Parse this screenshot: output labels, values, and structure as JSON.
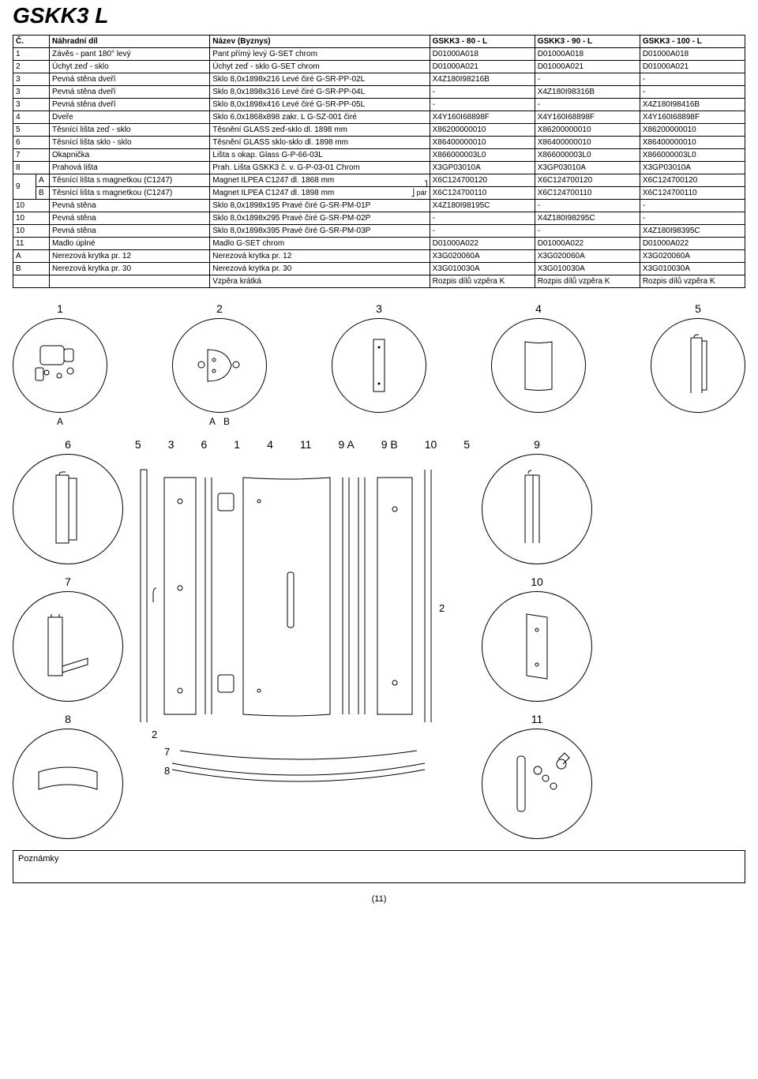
{
  "title": "GSKK3 L",
  "table": {
    "headers": [
      "Č.",
      "Náhradní díl",
      "Název (Byznys)",
      "GSKK3 - 80 - L",
      "GSKK3 - 90 - L",
      "GSKK3 - 100 - L"
    ],
    "rows": [
      {
        "n": "1",
        "sub": "",
        "name": "Závěs - pant 180° levý",
        "biz": "Pant přímý levý G-SET chrom",
        "c1": "D01000A018",
        "c2": "D01000A018",
        "c3": "D01000A018"
      },
      {
        "n": "2",
        "sub": "",
        "name": "Úchyt zeď - sklo",
        "biz": "Úchyt zeď - sklo G-SET chrom",
        "c1": "D01000A021",
        "c2": "D01000A021",
        "c3": "D01000A021"
      },
      {
        "n": "3",
        "sub": "",
        "name": "Pevná stěna dveří",
        "biz": "Sklo 8,0x1898x216 Levé čiré G-SR-PP-02L",
        "c1": "X4Z180I98216B",
        "c2": "-",
        "c3": "-"
      },
      {
        "n": "3",
        "sub": "",
        "name": "Pevná stěna dveří",
        "biz": "Sklo 8,0x1898x316 Levé čiré G-SR-PP-04L",
        "c1": "-",
        "c2": "X4Z180I98316B",
        "c3": "-"
      },
      {
        "n": "3",
        "sub": "",
        "name": "Pevná stěna dveří",
        "biz": "Sklo 8,0x1898x416 Levé čiré G-SR-PP-05L",
        "c1": "-",
        "c2": "-",
        "c3": "X4Z180I98416B"
      },
      {
        "n": "4",
        "sub": "",
        "name": "Dveře",
        "biz": "Sklo 6,0x1868x898 zakr. L G-SZ-001 čiré",
        "c1": "X4Y160I68898F",
        "c2": "X4Y160I68898F",
        "c3": "X4Y160I68898F"
      },
      {
        "n": "5",
        "sub": "",
        "name": "Těsnící lišta zeď - sklo",
        "biz": "Těsnění GLASS zeď-sklo dl. 1898 mm",
        "c1": "X86200000010",
        "c2": "X86200000010",
        "c3": "X86200000010"
      },
      {
        "n": "6",
        "sub": "",
        "name": "Těsnící lišta sklo - sklo",
        "biz": "Těsnění GLASS sklo-sklo dl. 1898 mm",
        "c1": "X86400000010",
        "c2": "X86400000010",
        "c3": "X86400000010"
      },
      {
        "n": "7",
        "sub": "",
        "name": "Okapnička",
        "biz": "Lišta s okap. Glass G-P-66-03L",
        "c1": "X866000003L0",
        "c2": "X866000003L0",
        "c3": "X866000003L0"
      },
      {
        "n": "8",
        "sub": "",
        "name": "Prahová lišta",
        "biz": "Prah. Lišta GSKK3 č. v. G-P-03-01 Chrom",
        "c1": "X3GP03010A",
        "c2": "X3GP03010A",
        "c3": "X3GP03010A"
      },
      {
        "n": "9",
        "sub": "A",
        "name": "Těsnící lišta s magnetkou (C1247)",
        "biz": "Magnet ILPEA C1247 dl. 1868 mm",
        "c1": "X6C124700120",
        "c2": "X6C124700120",
        "c3": "X6C124700120",
        "pair": "top"
      },
      {
        "n": "",
        "sub": "B",
        "name": "Těsnící lišta s magnetkou (C1247)",
        "biz": "Magnet ILPEA C1247 dl. 1898 mm",
        "c1": "X6C124700110",
        "c2": "X6C124700110",
        "c3": "X6C124700110",
        "pair": "bot"
      },
      {
        "n": "10",
        "sub": "",
        "name": "Pevná stěna",
        "biz": "Sklo 8,0x1898x195 Pravé čiré G-SR-PM-01P",
        "c1": "X4Z180I98195C",
        "c2": "-",
        "c3": "-"
      },
      {
        "n": "10",
        "sub": "",
        "name": "Pevná stěna",
        "biz": "Sklo 8,0x1898x295 Pravé čiré G-SR-PM-02P",
        "c1": "-",
        "c2": "X4Z180I98295C",
        "c3": "-"
      },
      {
        "n": "10",
        "sub": "",
        "name": "Pevná stěna",
        "biz": "Sklo 8,0x1898x395 Pravé čiré G-SR-PM-03P",
        "c1": "-",
        "c2": "-",
        "c3": "X4Z180I98395C"
      },
      {
        "n": "11",
        "sub": "",
        "name": "Madlo úplné",
        "biz": "Madlo G-SET chrom",
        "c1": "D01000A022",
        "c2": "D01000A022",
        "c3": "D01000A022"
      },
      {
        "n": "A",
        "sub": "",
        "name": "Nerezová krytka pr. 12",
        "biz": "Nerezová krytka pr. 12",
        "c1": "X3G020060A",
        "c2": "X3G020060A",
        "c3": "X3G020060A"
      },
      {
        "n": "B",
        "sub": "",
        "name": "Nerezová krytka pr. 30",
        "biz": "Nerezová krytka pr. 30",
        "c1": "X3G010030A",
        "c2": "X3G010030A",
        "c3": "X3G010030A"
      },
      {
        "n": "",
        "sub": "",
        "name": "",
        "biz": "Vzpěra krátká",
        "c1": "Rozpis dílů vzpěra K",
        "c2": "Rozpis dílů vzpěra K",
        "c3": "Rozpis dílů vzpěra K"
      }
    ],
    "pair_label": "pár"
  },
  "diagram_labels": {
    "r1": [
      "1",
      "2",
      "3",
      "4",
      "5"
    ],
    "r1_sub": {
      "c1": "A",
      "c2a": "A",
      "c2b": "B"
    },
    "center": [
      "5",
      "3",
      "6",
      "1",
      "4",
      "11",
      "9 A",
      "9 B",
      "10",
      "5"
    ],
    "left": [
      "6",
      "7",
      "8"
    ],
    "right": [
      "9",
      "10",
      "11"
    ],
    "under_center": [
      "2",
      "7",
      "8"
    ],
    "right_inner": "2"
  },
  "notes_label": "Poznámky",
  "page_number": "(11)"
}
